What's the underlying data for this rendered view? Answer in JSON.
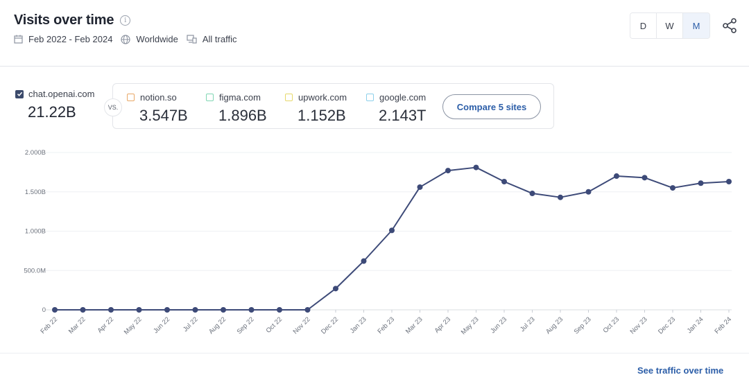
{
  "header": {
    "title": "Visits over time",
    "date_range": "Feb 2022 - Feb 2024",
    "region": "Worldwide",
    "traffic": "All traffic",
    "periods": [
      "D",
      "W",
      "M"
    ],
    "active_period": "M"
  },
  "primary_site": {
    "name": "chat.openai.com",
    "value": "21.22B"
  },
  "vs_label": "VS.",
  "compare_sites": [
    {
      "name": "notion.so",
      "value": "3.547B",
      "color": "#e8a766"
    },
    {
      "name": "figma.com",
      "value": "1.896B",
      "color": "#7fd6b3"
    },
    {
      "name": "upwork.com",
      "value": "1.152B",
      "color": "#e6d86a"
    },
    {
      "name": "google.com",
      "value": "2.143T",
      "color": "#8cd0ea"
    }
  ],
  "compare_button": "Compare 5 sites",
  "footer_link": "See traffic over time",
  "chart_data": {
    "type": "line",
    "title": "",
    "xlabel": "",
    "ylabel": "",
    "ylim": [
      0,
      2000000000
    ],
    "yticks": [
      0,
      500000000,
      1000000000,
      1500000000,
      2000000000
    ],
    "ytick_labels": [
      "0",
      "500.0M",
      "1.000B",
      "1.500B",
      "2.000B"
    ],
    "grid": true,
    "categories": [
      "Feb 22",
      "Mar 22",
      "Apr 22",
      "May 22",
      "Jun 22",
      "Jul 22",
      "Aug 22",
      "Sep 22",
      "Oct 22",
      "Nov 22",
      "Dec 22",
      "Jan 23",
      "Feb 23",
      "Mar 23",
      "Apr 23",
      "May 23",
      "Jun 23",
      "Jul 23",
      "Aug 23",
      "Sep 23",
      "Oct 23",
      "Nov 23",
      "Dec 23",
      "Jan 24",
      "Feb 24"
    ],
    "series": [
      {
        "color": "#3d4a78",
        "values": [
          0,
          0,
          0,
          0,
          0,
          0,
          0,
          0,
          0,
          0,
          270000000,
          620000000,
          1010000000,
          1560000000,
          1770000000,
          1810000000,
          1630000000,
          1480000000,
          1430000000,
          1500000000,
          1700000000,
          1680000000,
          1550000000,
          1610000000,
          1630000000
        ]
      }
    ]
  }
}
